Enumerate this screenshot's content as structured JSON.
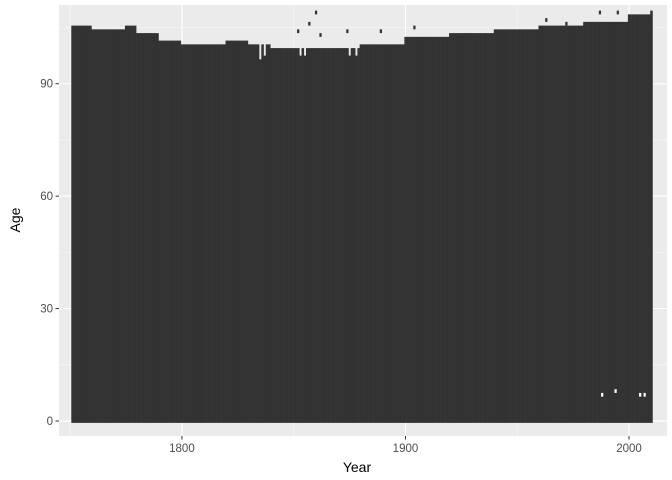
{
  "chart_data": {
    "type": "heatmap",
    "title": "",
    "xlabel": "Year",
    "ylabel": "Age",
    "xlim": [
      1745,
      2017
    ],
    "ylim": [
      -4,
      111
    ],
    "x_ticks": [
      1800,
      1900,
      2000
    ],
    "y_ticks": [
      0,
      30,
      60,
      90
    ],
    "x_tick_labels": [
      "1800",
      "1900",
      "2000"
    ],
    "y_tick_labels": [
      "0",
      "30",
      "60",
      "90"
    ],
    "grid": true,
    "panel_background": "#ebebeb",
    "fill_color": "#333333",
    "year_range": [
      1751,
      2010
    ],
    "tile_width_years": 1,
    "max_age_breakpoints": [
      {
        "year": 1751,
        "max_age": 105
      },
      {
        "year": 1760,
        "max_age": 104
      },
      {
        "year": 1770,
        "max_age": 104
      },
      {
        "year": 1775,
        "max_age": 105
      },
      {
        "year": 1780,
        "max_age": 103
      },
      {
        "year": 1790,
        "max_age": 101
      },
      {
        "year": 1800,
        "max_age": 100
      },
      {
        "year": 1820,
        "max_age": 101
      },
      {
        "year": 1830,
        "max_age": 100
      },
      {
        "year": 1840,
        "max_age": 99
      },
      {
        "year": 1850,
        "max_age": 99
      },
      {
        "year": 1860,
        "max_age": 99
      },
      {
        "year": 1880,
        "max_age": 100
      },
      {
        "year": 1900,
        "max_age": 102
      },
      {
        "year": 1920,
        "max_age": 103
      },
      {
        "year": 1940,
        "max_age": 104
      },
      {
        "year": 1960,
        "max_age": 105
      },
      {
        "year": 1980,
        "max_age": 106
      },
      {
        "year": 2000,
        "max_age": 108
      },
      {
        "year": 2010,
        "max_age": 109
      }
    ],
    "dips": [
      {
        "year": 1835,
        "max_age": 96
      },
      {
        "year": 1837,
        "max_age": 97
      },
      {
        "year": 1853,
        "max_age": 97
      },
      {
        "year": 1855,
        "max_age": 97
      },
      {
        "year": 1875,
        "max_age": 97
      },
      {
        "year": 1878,
        "max_age": 97
      }
    ],
    "isolated_cells": [
      {
        "year": 1852,
        "age": 104
      },
      {
        "year": 1857,
        "age": 106
      },
      {
        "year": 1860,
        "age": 109
      },
      {
        "year": 1862,
        "age": 103
      },
      {
        "year": 1874,
        "age": 104
      },
      {
        "year": 1889,
        "age": 104
      },
      {
        "year": 1904,
        "age": 105
      },
      {
        "year": 1963,
        "age": 107
      },
      {
        "year": 1972,
        "age": 106
      },
      {
        "year": 1987,
        "age": 109
      },
      {
        "year": 1995,
        "age": 109
      }
    ],
    "gaps": [
      {
        "year": 1988,
        "age": 7
      },
      {
        "year": 1994,
        "age": 8
      },
      {
        "year": 2005,
        "age": 7
      },
      {
        "year": 2007,
        "age": 7
      }
    ]
  }
}
